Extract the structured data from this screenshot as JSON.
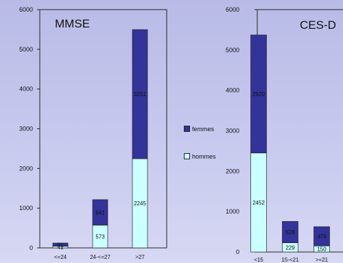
{
  "legend": {
    "items": [
      {
        "label": "femmes",
        "color": "#333399"
      },
      {
        "label": "hommes",
        "color": "#ccffff"
      }
    ]
  },
  "chart_data": [
    {
      "type": "bar",
      "stacked": true,
      "title": "MMSE",
      "categories": [
        "<=24",
        "24-<=27",
        ">27"
      ],
      "series": [
        {
          "name": "hommes",
          "values": [
            41,
            573,
            2245
          ],
          "color": "#ccffff"
        },
        {
          "name": "femmes",
          "values": [
            81,
            641,
            3251
          ],
          "color": "#333399"
        }
      ],
      "data_labels": [
        [
          "41",
          "573",
          "2245"
        ],
        [
          "81",
          "641",
          "3251"
        ]
      ],
      "ylim": [
        0,
        6000
      ],
      "yticks": [
        0,
        1000,
        2000,
        3000,
        4000,
        5000,
        6000
      ],
      "grid": false,
      "legend_position": "right"
    },
    {
      "type": "bar",
      "stacked": true,
      "title": "CES-D",
      "categories": [
        "<15",
        "15-<21",
        ">=21"
      ],
      "series": [
        {
          "name": "hommes",
          "values": [
            2452,
            229,
            150
          ],
          "color": "#ccffff"
        },
        {
          "name": "femmes",
          "values": [
            2920,
            528,
            476
          ],
          "color": "#333399"
        }
      ],
      "data_labels": [
        [
          "2452",
          "229",
          "150"
        ],
        [
          "2920",
          "528",
          "476"
        ]
      ],
      "ylim": [
        0,
        6000
      ],
      "yticks": [
        0,
        1000,
        2000,
        3000,
        4000,
        5000,
        6000
      ],
      "grid": false
    }
  ]
}
